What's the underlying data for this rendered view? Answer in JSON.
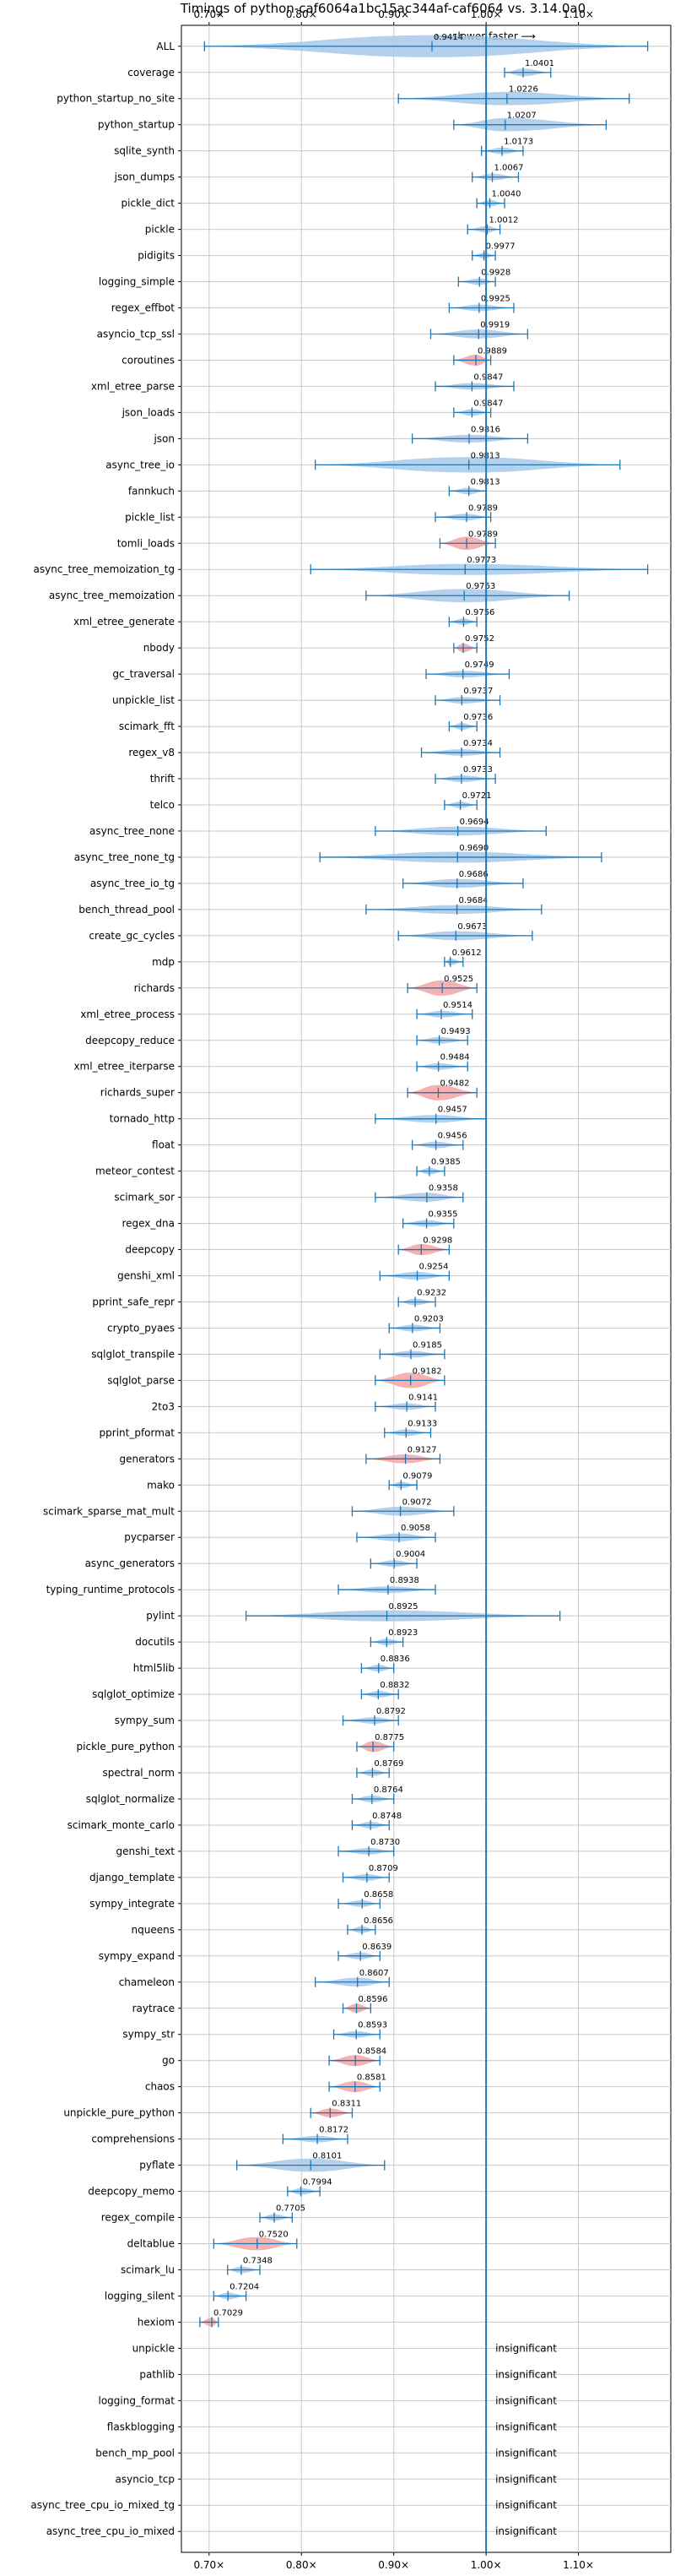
{
  "chart_data": {
    "type": "violin",
    "title": "Timings of python-caf6064a1bc15ac344af-caf6064 vs. 3.14.0a0",
    "direction_label": "⟵ slower   faster ⟶",
    "x_ticks": [
      "0.70×",
      "0.80×",
      "0.90×",
      "1.00×",
      "1.10×"
    ],
    "x_tick_values": [
      0.7,
      0.8,
      0.9,
      1.0,
      1.1
    ],
    "xlim": [
      0.67,
      1.2
    ],
    "reference_line": 1.0,
    "grid": true,
    "colors": {
      "insignificant": "#a7c8e8",
      "slower": "#f4a3a3",
      "line": "#1f77b4"
    },
    "insignificant_label": "insignificant",
    "benchmarks": [
      {
        "name": "ALL",
        "value": "0.9414",
        "v": 0.9414,
        "lo": 0.695,
        "hi": 1.175,
        "w": 1.0,
        "slow": false
      },
      {
        "name": "coverage",
        "value": "1.0401",
        "v": 1.0401,
        "lo": 1.02,
        "hi": 1.07,
        "w": 0.35,
        "slow": false
      },
      {
        "name": "python_startup_no_site",
        "value": "1.0226",
        "v": 1.0226,
        "lo": 0.905,
        "hi": 1.155,
        "w": 0.6,
        "slow": false
      },
      {
        "name": "python_startup",
        "value": "1.0207",
        "v": 1.0207,
        "lo": 0.965,
        "hi": 1.13,
        "w": 0.6,
        "slow": false
      },
      {
        "name": "sqlite_synth",
        "value": "1.0173",
        "v": 1.0173,
        "lo": 0.995,
        "hi": 1.04,
        "w": 0.3,
        "slow": false
      },
      {
        "name": "json_dumps",
        "value": "1.0067",
        "v": 1.0067,
        "lo": 0.985,
        "hi": 1.035,
        "w": 0.3,
        "slow": false
      },
      {
        "name": "pickle_dict",
        "value": "1.0040",
        "v": 1.004,
        "lo": 0.99,
        "hi": 1.02,
        "w": 0.3,
        "slow": false
      },
      {
        "name": "pickle",
        "value": "1.0012",
        "v": 1.0012,
        "lo": 0.98,
        "hi": 1.015,
        "w": 0.3,
        "slow": false
      },
      {
        "name": "pidigits",
        "value": "0.9977",
        "v": 0.9977,
        "lo": 0.985,
        "hi": 1.01,
        "w": 0.25,
        "slow": false
      },
      {
        "name": "logging_simple",
        "value": "0.9928",
        "v": 0.9928,
        "lo": 0.97,
        "hi": 1.01,
        "w": 0.3,
        "slow": false
      },
      {
        "name": "regex_effbot",
        "value": "0.9925",
        "v": 0.9925,
        "lo": 0.96,
        "hi": 1.03,
        "w": 0.3,
        "slow": false
      },
      {
        "name": "asyncio_tcp_ssl",
        "value": "0.9919",
        "v": 0.9919,
        "lo": 0.94,
        "hi": 1.045,
        "w": 0.4,
        "slow": false
      },
      {
        "name": "coroutines",
        "value": "0.9889",
        "v": 0.9889,
        "lo": 0.965,
        "hi": 1.005,
        "w": 0.5,
        "slow": true
      },
      {
        "name": "xml_etree_parse",
        "value": "0.9847",
        "v": 0.9847,
        "lo": 0.945,
        "hi": 1.03,
        "w": 0.3,
        "slow": false
      },
      {
        "name": "json_loads",
        "value": "0.9847",
        "v": 0.9847,
        "lo": 0.965,
        "hi": 1.005,
        "w": 0.3,
        "slow": false
      },
      {
        "name": "json",
        "value": "0.9816",
        "v": 0.9816,
        "lo": 0.92,
        "hi": 1.045,
        "w": 0.35,
        "slow": false
      },
      {
        "name": "async_tree_io",
        "value": "0.9813",
        "v": 0.9813,
        "lo": 0.815,
        "hi": 1.145,
        "w": 0.7,
        "slow": false
      },
      {
        "name": "fannkuch",
        "value": "0.9813",
        "v": 0.9813,
        "lo": 0.96,
        "hi": 1.0,
        "w": 0.3,
        "slow": false
      },
      {
        "name": "pickle_list",
        "value": "0.9789",
        "v": 0.9789,
        "lo": 0.945,
        "hi": 1.005,
        "w": 0.3,
        "slow": false
      },
      {
        "name": "tomli_loads",
        "value": "0.9789",
        "v": 0.9789,
        "lo": 0.95,
        "hi": 1.01,
        "w": 0.6,
        "slow": true
      },
      {
        "name": "async_tree_memoization_tg",
        "value": "0.9773",
        "v": 0.9773,
        "lo": 0.81,
        "hi": 1.175,
        "w": 0.5,
        "slow": false
      },
      {
        "name": "async_tree_memoization",
        "value": "0.9763",
        "v": 0.9763,
        "lo": 0.87,
        "hi": 1.09,
        "w": 0.6,
        "slow": false
      },
      {
        "name": "xml_etree_generate",
        "value": "0.9756",
        "v": 0.9756,
        "lo": 0.96,
        "hi": 0.99,
        "w": 0.3,
        "slow": false
      },
      {
        "name": "nbody",
        "value": "0.9752",
        "v": 0.9752,
        "lo": 0.965,
        "hi": 0.99,
        "w": 0.4,
        "slow": true
      },
      {
        "name": "gc_traversal",
        "value": "0.9749",
        "v": 0.9749,
        "lo": 0.935,
        "hi": 1.025,
        "w": 0.3,
        "slow": false
      },
      {
        "name": "unpickle_list",
        "value": "0.9737",
        "v": 0.9737,
        "lo": 0.945,
        "hi": 1.015,
        "w": 0.3,
        "slow": false
      },
      {
        "name": "scimark_fft",
        "value": "0.9736",
        "v": 0.9736,
        "lo": 0.96,
        "hi": 0.99,
        "w": 0.3,
        "slow": false
      },
      {
        "name": "regex_v8",
        "value": "0.9734",
        "v": 0.9734,
        "lo": 0.93,
        "hi": 1.015,
        "w": 0.3,
        "slow": false
      },
      {
        "name": "thrift",
        "value": "0.9733",
        "v": 0.9733,
        "lo": 0.945,
        "hi": 1.01,
        "w": 0.3,
        "slow": false
      },
      {
        "name": "telco",
        "value": "0.9721",
        "v": 0.9721,
        "lo": 0.955,
        "hi": 0.99,
        "w": 0.3,
        "slow": false
      },
      {
        "name": "async_tree_none",
        "value": "0.9694",
        "v": 0.9694,
        "lo": 0.88,
        "hi": 1.065,
        "w": 0.4,
        "slow": false
      },
      {
        "name": "async_tree_none_tg",
        "value": "0.9690",
        "v": 0.969,
        "lo": 0.82,
        "hi": 1.125,
        "w": 0.5,
        "slow": false
      },
      {
        "name": "async_tree_io_tg",
        "value": "0.9686",
        "v": 0.9686,
        "lo": 0.91,
        "hi": 1.04,
        "w": 0.4,
        "slow": false
      },
      {
        "name": "bench_thread_pool",
        "value": "0.9684",
        "v": 0.9684,
        "lo": 0.87,
        "hi": 1.06,
        "w": 0.4,
        "slow": false
      },
      {
        "name": "create_gc_cycles",
        "value": "0.9673",
        "v": 0.9673,
        "lo": 0.905,
        "hi": 1.05,
        "w": 0.4,
        "slow": false
      },
      {
        "name": "mdp",
        "value": "0.9612",
        "v": 0.9612,
        "lo": 0.955,
        "hi": 0.975,
        "w": 0.3,
        "slow": false
      },
      {
        "name": "richards",
        "value": "0.9525",
        "v": 0.9525,
        "lo": 0.915,
        "hi": 0.99,
        "w": 0.7,
        "slow": true
      },
      {
        "name": "xml_etree_process",
        "value": "0.9514",
        "v": 0.9514,
        "lo": 0.925,
        "hi": 0.985,
        "w": 0.3,
        "slow": false
      },
      {
        "name": "deepcopy_reduce",
        "value": "0.9493",
        "v": 0.9493,
        "lo": 0.925,
        "hi": 0.98,
        "w": 0.3,
        "slow": false
      },
      {
        "name": "xml_etree_iterparse",
        "value": "0.9484",
        "v": 0.9484,
        "lo": 0.925,
        "hi": 0.98,
        "w": 0.3,
        "slow": false
      },
      {
        "name": "richards_super",
        "value": "0.9482",
        "v": 0.9482,
        "lo": 0.915,
        "hi": 0.99,
        "w": 0.7,
        "slow": true
      },
      {
        "name": "tornado_http",
        "value": "0.9457",
        "v": 0.9457,
        "lo": 0.88,
        "hi": 1.0,
        "w": 0.35,
        "slow": false
      },
      {
        "name": "float",
        "value": "0.9456",
        "v": 0.9456,
        "lo": 0.92,
        "hi": 0.975,
        "w": 0.3,
        "slow": false
      },
      {
        "name": "meteor_contest",
        "value": "0.9385",
        "v": 0.9385,
        "lo": 0.925,
        "hi": 0.955,
        "w": 0.3,
        "slow": false
      },
      {
        "name": "scimark_sor",
        "value": "0.9358",
        "v": 0.9358,
        "lo": 0.88,
        "hi": 0.975,
        "w": 0.4,
        "slow": false
      },
      {
        "name": "regex_dna",
        "value": "0.9355",
        "v": 0.9355,
        "lo": 0.91,
        "hi": 0.965,
        "w": 0.3,
        "slow": false
      },
      {
        "name": "deepcopy",
        "value": "0.9298",
        "v": 0.9298,
        "lo": 0.905,
        "hi": 0.96,
        "w": 0.5,
        "slow": true
      },
      {
        "name": "genshi_xml",
        "value": "0.9254",
        "v": 0.9254,
        "lo": 0.885,
        "hi": 0.96,
        "w": 0.35,
        "slow": false
      },
      {
        "name": "pprint_safe_repr",
        "value": "0.9232",
        "v": 0.9232,
        "lo": 0.905,
        "hi": 0.945,
        "w": 0.3,
        "slow": false
      },
      {
        "name": "crypto_pyaes",
        "value": "0.9203",
        "v": 0.9203,
        "lo": 0.895,
        "hi": 0.95,
        "w": 0.3,
        "slow": false
      },
      {
        "name": "sqlglot_transpile",
        "value": "0.9185",
        "v": 0.9185,
        "lo": 0.885,
        "hi": 0.955,
        "w": 0.3,
        "slow": false
      },
      {
        "name": "sqlglot_parse",
        "value": "0.9182",
        "v": 0.9182,
        "lo": 0.88,
        "hi": 0.955,
        "w": 0.7,
        "slow": true
      },
      {
        "name": "2to3",
        "value": "0.9141",
        "v": 0.9141,
        "lo": 0.88,
        "hi": 0.945,
        "w": 0.3,
        "slow": false
      },
      {
        "name": "pprint_pformat",
        "value": "0.9133",
        "v": 0.9133,
        "lo": 0.89,
        "hi": 0.94,
        "w": 0.3,
        "slow": false
      },
      {
        "name": "generators",
        "value": "0.9127",
        "v": 0.9127,
        "lo": 0.87,
        "hi": 0.95,
        "w": 0.4,
        "slow": true
      },
      {
        "name": "mako",
        "value": "0.9079",
        "v": 0.9079,
        "lo": 0.895,
        "hi": 0.925,
        "w": 0.3,
        "slow": false
      },
      {
        "name": "scimark_sparse_mat_mult",
        "value": "0.9072",
        "v": 0.9072,
        "lo": 0.855,
        "hi": 0.965,
        "w": 0.4,
        "slow": false
      },
      {
        "name": "pycparser",
        "value": "0.9058",
        "v": 0.9058,
        "lo": 0.86,
        "hi": 0.945,
        "w": 0.35,
        "slow": false
      },
      {
        "name": "async_generators",
        "value": "0.9004",
        "v": 0.9004,
        "lo": 0.875,
        "hi": 0.925,
        "w": 0.3,
        "slow": false
      },
      {
        "name": "typing_runtime_protocols",
        "value": "0.8938",
        "v": 0.8938,
        "lo": 0.84,
        "hi": 0.945,
        "w": 0.3,
        "slow": false
      },
      {
        "name": "pylint",
        "value": "0.8925",
        "v": 0.8925,
        "lo": 0.74,
        "hi": 1.08,
        "w": 0.5,
        "slow": false
      },
      {
        "name": "docutils",
        "value": "0.8923",
        "v": 0.8923,
        "lo": 0.875,
        "hi": 0.91,
        "w": 0.3,
        "slow": false
      },
      {
        "name": "html5lib",
        "value": "0.8836",
        "v": 0.8836,
        "lo": 0.865,
        "hi": 0.9,
        "w": 0.3,
        "slow": false
      },
      {
        "name": "sqlglot_optimize",
        "value": "0.8832",
        "v": 0.8832,
        "lo": 0.865,
        "hi": 0.905,
        "w": 0.3,
        "slow": false
      },
      {
        "name": "sympy_sum",
        "value": "0.8792",
        "v": 0.8792,
        "lo": 0.845,
        "hi": 0.905,
        "w": 0.3,
        "slow": false
      },
      {
        "name": "pickle_pure_python",
        "value": "0.8775",
        "v": 0.8775,
        "lo": 0.86,
        "hi": 0.9,
        "w": 0.5,
        "slow": true
      },
      {
        "name": "spectral_norm",
        "value": "0.8769",
        "v": 0.8769,
        "lo": 0.86,
        "hi": 0.895,
        "w": 0.3,
        "slow": false
      },
      {
        "name": "sqlglot_normalize",
        "value": "0.8764",
        "v": 0.8764,
        "lo": 0.855,
        "hi": 0.9,
        "w": 0.3,
        "slow": false
      },
      {
        "name": "scimark_monte_carlo",
        "value": "0.8748",
        "v": 0.8748,
        "lo": 0.855,
        "hi": 0.895,
        "w": 0.3,
        "slow": false
      },
      {
        "name": "genshi_text",
        "value": "0.8730",
        "v": 0.873,
        "lo": 0.84,
        "hi": 0.9,
        "w": 0.3,
        "slow": false
      },
      {
        "name": "django_template",
        "value": "0.8709",
        "v": 0.8709,
        "lo": 0.845,
        "hi": 0.895,
        "w": 0.3,
        "slow": false
      },
      {
        "name": "sympy_integrate",
        "value": "0.8658",
        "v": 0.8658,
        "lo": 0.84,
        "hi": 0.885,
        "w": 0.3,
        "slow": false
      },
      {
        "name": "nqueens",
        "value": "0.8656",
        "v": 0.8656,
        "lo": 0.85,
        "hi": 0.88,
        "w": 0.3,
        "slow": false
      },
      {
        "name": "sympy_expand",
        "value": "0.8639",
        "v": 0.8639,
        "lo": 0.84,
        "hi": 0.885,
        "w": 0.3,
        "slow": false
      },
      {
        "name": "chameleon",
        "value": "0.8607",
        "v": 0.8607,
        "lo": 0.815,
        "hi": 0.895,
        "w": 0.4,
        "slow": false
      },
      {
        "name": "raytrace",
        "value": "0.8596",
        "v": 0.8596,
        "lo": 0.845,
        "hi": 0.875,
        "w": 0.4,
        "slow": true
      },
      {
        "name": "sympy_str",
        "value": "0.8593",
        "v": 0.8593,
        "lo": 0.835,
        "hi": 0.885,
        "w": 0.3,
        "slow": false
      },
      {
        "name": "go",
        "value": "0.8584",
        "v": 0.8584,
        "lo": 0.83,
        "hi": 0.885,
        "w": 0.5,
        "slow": true
      },
      {
        "name": "chaos",
        "value": "0.8581",
        "v": 0.8581,
        "lo": 0.83,
        "hi": 0.885,
        "w": 0.5,
        "slow": true
      },
      {
        "name": "unpickle_pure_python",
        "value": "0.8311",
        "v": 0.8311,
        "lo": 0.81,
        "hi": 0.855,
        "w": 0.4,
        "slow": true
      },
      {
        "name": "comprehensions",
        "value": "0.8172",
        "v": 0.8172,
        "lo": 0.78,
        "hi": 0.85,
        "w": 0.3,
        "slow": false
      },
      {
        "name": "pyflate",
        "value": "0.8101",
        "v": 0.8101,
        "lo": 0.73,
        "hi": 0.89,
        "w": 0.6,
        "slow": false
      },
      {
        "name": "deepcopy_memo",
        "value": "0.7994",
        "v": 0.7994,
        "lo": 0.785,
        "hi": 0.82,
        "w": 0.3,
        "slow": false
      },
      {
        "name": "regex_compile",
        "value": "0.7705",
        "v": 0.7705,
        "lo": 0.755,
        "hi": 0.79,
        "w": 0.3,
        "slow": false
      },
      {
        "name": "deltablue",
        "value": "0.7520",
        "v": 0.752,
        "lo": 0.705,
        "hi": 0.795,
        "w": 0.6,
        "slow": true
      },
      {
        "name": "scimark_lu",
        "value": "0.7348",
        "v": 0.7348,
        "lo": 0.72,
        "hi": 0.755,
        "w": 0.3,
        "slow": false
      },
      {
        "name": "logging_silent",
        "value": "0.7204",
        "v": 0.7204,
        "lo": 0.705,
        "hi": 0.74,
        "w": 0.3,
        "slow": false
      },
      {
        "name": "hexiom",
        "value": "0.7029",
        "v": 0.7029,
        "lo": 0.69,
        "hi": 0.71,
        "w": 0.4,
        "slow": true
      },
      {
        "name": "unpickle",
        "value": "insignificant",
        "insig": true
      },
      {
        "name": "pathlib",
        "value": "insignificant",
        "insig": true
      },
      {
        "name": "logging_format",
        "value": "insignificant",
        "insig": true
      },
      {
        "name": "flaskblogging",
        "value": "insignificant",
        "insig": true
      },
      {
        "name": "bench_mp_pool",
        "value": "insignificant",
        "insig": true
      },
      {
        "name": "asyncio_tcp",
        "value": "insignificant",
        "insig": true
      },
      {
        "name": "async_tree_cpu_io_mixed_tg",
        "value": "insignificant",
        "insig": true
      },
      {
        "name": "async_tree_cpu_io_mixed",
        "value": "insignificant",
        "insig": true
      }
    ]
  }
}
